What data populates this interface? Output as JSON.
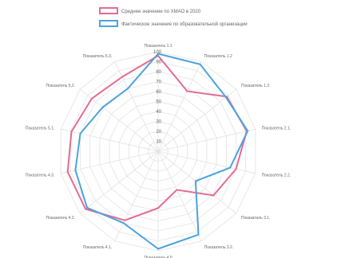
{
  "chart_data": {
    "type": "radar",
    "title": "",
    "legend_position": "top",
    "grid": true,
    "r_range": [
      0,
      100
    ],
    "r_ticks": [
      10,
      20,
      30,
      40,
      50,
      60,
      70,
      80,
      90,
      100
    ],
    "categories": [
      "Показатель 1.1",
      "Показатель 1.2",
      "Показатель 1.3",
      "Показатель 2.1.",
      "Показатель 2.2.",
      "Показатель 3.1.",
      "Показатель 3.2.",
      "Показатель 4.0",
      "Показатель 4.1.",
      "Показатель 4.2.",
      "Показатель 4.3.",
      "Показатель 5.1.",
      "Показатель 5.2.",
      "Показатель 5.3."
    ],
    "series": [
      {
        "name": "Среднее значение по ХМАО в 2020",
        "color": "#e66b8f",
        "values": [
          96,
          67,
          88,
          91,
          80,
          71,
          43,
          57,
          77,
          93,
          93,
          89,
          85,
          83
        ]
      },
      {
        "name": "Фактическое значение по образовательной организации",
        "color": "#4aa3de",
        "values": [
          98,
          97,
          87,
          92,
          74,
          48,
          93,
          98,
          80,
          91,
          85,
          80,
          71,
          70
        ]
      }
    ]
  }
}
